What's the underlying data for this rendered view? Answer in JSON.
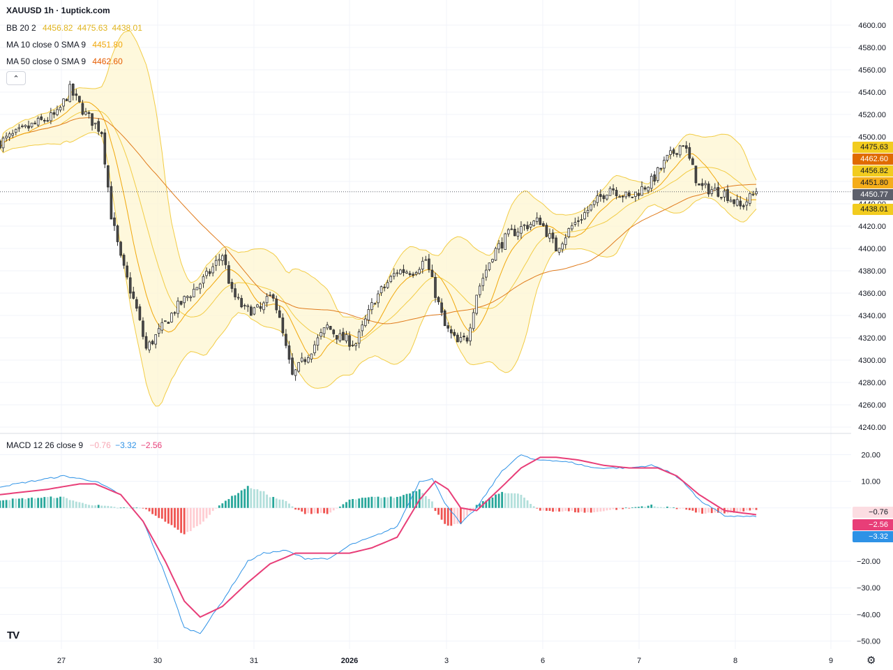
{
  "title": "XAUUSD 1h · 1uptick.com",
  "legend": {
    "bb": {
      "label": "BB 20 2",
      "v1": "4456.82",
      "v2": "4475.63",
      "v3": "4438.01",
      "color": "#e0b41e"
    },
    "ma10": {
      "label": "MA 10 close 0 SMA 9",
      "value": "4451.80",
      "color": "#f0a70a"
    },
    "ma50": {
      "label": "MA 50 close 0 SMA 9",
      "value": "4462.60",
      "color": "#e65c00"
    },
    "macd": {
      "label": "MACD 12 26 close 9",
      "hist": "−0.76",
      "macd": "−3.32",
      "signal": "−2.56"
    }
  },
  "price_labels": {
    "bb_upper": "4475.63",
    "ma50": "4462.60",
    "bb_basis": "4456.82",
    "ma10": "4451.80",
    "last": "4450.77",
    "bb_lower": "4438.01",
    "macd_hist": "−0.76",
    "macd_signal": "−2.56",
    "macd_line": "−3.32"
  },
  "colors": {
    "up": "#ffffff",
    "down": "#4a4a4a",
    "band": "#fdf5d0",
    "bb_line": "#f2cc45",
    "ma10": "#f0a70a",
    "ma50": "#e07b1c",
    "macd": "#2e92e6",
    "signal": "#e83e78",
    "hist_up": "#26a69a",
    "hist_up_light": "#b2dfdb",
    "hist_down": "#ef5350",
    "hist_down_light": "#ffcdd2"
  },
  "chart_data": {
    "type": "candlestick",
    "symbol": "XAUUSD",
    "timeframe": "1h",
    "price_axis": {
      "ylim": [
        4235,
        4605
      ],
      "ticks": [
        4600,
        4580,
        4560,
        4540,
        4520,
        4500,
        4480,
        4460,
        4440,
        4420,
        4400,
        4380,
        4360,
        4340,
        4320,
        4300,
        4280,
        4260,
        4240
      ]
    },
    "macd_axis": {
      "ylim": [
        -53,
        23
      ],
      "ticks": [
        20,
        10,
        -20,
        -30,
        -40,
        -50
      ],
      "tick_labels": [
        "20.00",
        "10.00",
        "−20.00",
        "−30.00",
        "−40.00",
        "−50.00"
      ]
    },
    "x_ticks": [
      "27",
      "30",
      "31",
      "2026",
      "3",
      "6",
      "7",
      "8",
      "9"
    ],
    "price_path": [
      [
        0,
        4495
      ],
      [
        10,
        4510
      ],
      [
        18,
        4520
      ],
      [
        22,
        4542
      ],
      [
        27,
        4520
      ],
      [
        32,
        4505
      ],
      [
        35,
        4430
      ],
      [
        38,
        4390
      ],
      [
        43,
        4345
      ],
      [
        46,
        4310
      ],
      [
        50,
        4325
      ],
      [
        55,
        4345
      ],
      [
        60,
        4360
      ],
      [
        65,
        4375
      ],
      [
        70,
        4395
      ],
      [
        73,
        4360
      ],
      [
        77,
        4345
      ],
      [
        82,
        4345
      ],
      [
        86,
        4360
      ],
      [
        92,
        4285
      ],
      [
        98,
        4310
      ],
      [
        103,
        4330
      ],
      [
        107,
        4320
      ],
      [
        112,
        4315
      ],
      [
        118,
        4355
      ],
      [
        125,
        4380
      ],
      [
        130,
        4380
      ],
      [
        134,
        4390
      ],
      [
        137,
        4360
      ],
      [
        140,
        4330
      ],
      [
        144,
        4315
      ],
      [
        147,
        4320
      ],
      [
        150,
        4360
      ],
      [
        155,
        4395
      ],
      [
        160,
        4412
      ],
      [
        165,
        4420
      ],
      [
        170,
        4425
      ],
      [
        175,
        4400
      ],
      [
        180,
        4420
      ],
      [
        187,
        4440
      ],
      [
        192,
        4455
      ],
      [
        198,
        4445
      ],
      [
        205,
        4460
      ],
      [
        210,
        4480
      ],
      [
        215,
        4495
      ],
      [
        220,
        4455
      ],
      [
        228,
        4450
      ],
      [
        233,
        4437
      ],
      [
        238,
        4451
      ]
    ],
    "macd_path": [
      [
        0,
        8
      ],
      [
        10,
        10
      ],
      [
        20,
        12
      ],
      [
        30,
        10
      ],
      [
        38,
        5
      ],
      [
        45,
        -5
      ],
      [
        52,
        -25
      ],
      [
        58,
        -45
      ],
      [
        63,
        -47
      ],
      [
        70,
        -35
      ],
      [
        78,
        -20
      ],
      [
        83,
        -17
      ],
      [
        90,
        -16
      ],
      [
        96,
        -19
      ],
      [
        104,
        -19
      ],
      [
        110,
        -14
      ],
      [
        117,
        -11
      ],
      [
        125,
        -7
      ],
      [
        132,
        10
      ],
      [
        136,
        11
      ],
      [
        140,
        2
      ],
      [
        145,
        -6
      ],
      [
        150,
        0
      ],
      [
        158,
        14
      ],
      [
        164,
        20
      ],
      [
        168,
        18
      ],
      [
        173,
        18
      ],
      [
        180,
        17
      ],
      [
        187,
        15
      ],
      [
        193,
        15
      ],
      [
        198,
        15
      ],
      [
        205,
        16
      ],
      [
        210,
        14
      ],
      [
        215,
        10
      ],
      [
        220,
        3
      ],
      [
        228,
        -3
      ],
      [
        238,
        -3.3
      ]
    ],
    "signal_path": [
      [
        0,
        5
      ],
      [
        15,
        7
      ],
      [
        25,
        9
      ],
      [
        30,
        9
      ],
      [
        38,
        5
      ],
      [
        45,
        -5
      ],
      [
        52,
        -20
      ],
      [
        58,
        -35
      ],
      [
        63,
        -41
      ],
      [
        70,
        -37
      ],
      [
        78,
        -28
      ],
      [
        85,
        -21
      ],
      [
        93,
        -17
      ],
      [
        100,
        -17
      ],
      [
        110,
        -17
      ],
      [
        117,
        -15
      ],
      [
        125,
        -11
      ],
      [
        132,
        3
      ],
      [
        137,
        10
      ],
      [
        141,
        7
      ],
      [
        145,
        0
      ],
      [
        150,
        -1
      ],
      [
        158,
        8
      ],
      [
        164,
        15
      ],
      [
        170,
        19
      ],
      [
        175,
        19
      ],
      [
        182,
        18
      ],
      [
        190,
        16
      ],
      [
        198,
        15
      ],
      [
        207,
        15
      ],
      [
        213,
        12
      ],
      [
        220,
        5
      ],
      [
        228,
        -1
      ],
      [
        238,
        -2.56
      ]
    ],
    "last_values": {
      "close": 4450.77,
      "bb_basis": 4456.82,
      "bb_upper": 4475.63,
      "bb_lower": 4438.01,
      "ma10": 4451.8,
      "ma50": 4462.6,
      "macd": -3.32,
      "signal": -2.56,
      "histogram": -0.76
    }
  }
}
